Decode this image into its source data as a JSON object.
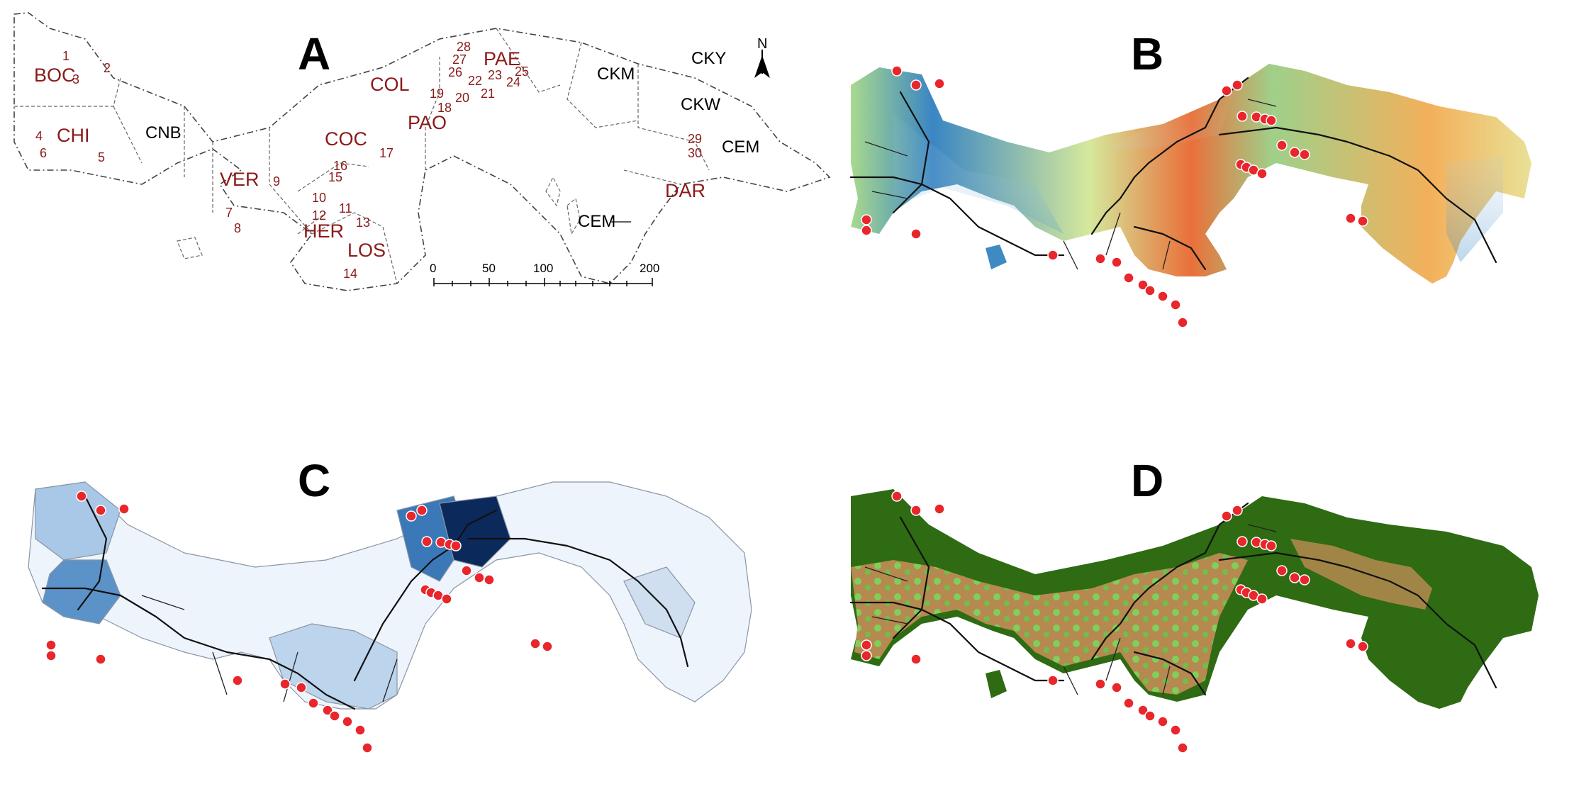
{
  "panels": {
    "a": {
      "letter": "A"
    },
    "b": {
      "letter": "B"
    },
    "c": {
      "letter": "C"
    },
    "d": {
      "letter": "D"
    }
  },
  "panel_a": {
    "north_label": "N",
    "provinces": {
      "boc": "BOC",
      "chi": "CHI",
      "ver": "VER",
      "her": "HER",
      "los": "LOS",
      "coc": "COC",
      "col": "COL",
      "pao": "PAO",
      "pae": "PAE",
      "dar": "DAR"
    },
    "comarcas": {
      "cnb": "CNB",
      "cky": "CKY",
      "ckm": "CKM",
      "ckw": "CKW",
      "cem_east": "CEM",
      "cem_south": "CEM"
    },
    "site_numbers": [
      "1",
      "2",
      "3",
      "4",
      "5",
      "6",
      "7",
      "8",
      "9",
      "10",
      "11",
      "12",
      "13",
      "14",
      "15",
      "16",
      "17",
      "18",
      "19",
      "20",
      "21",
      "22",
      "23",
      "24",
      "25",
      "26",
      "27",
      "28",
      "29",
      "30"
    ],
    "scale_ticks": [
      "0",
      "50",
      "100",
      "200"
    ]
  },
  "colors": {
    "site_marker": "#e8262b",
    "label_red": "#8b1a1a",
    "elevation_low": "#2f7fbf",
    "elevation_mid": "#c8e39a",
    "elevation_high": "#e4572e",
    "choropleth_dark": "#0b2a5b",
    "choropleth_light": "#eef4fb",
    "landcover_forest": "#2e6b12",
    "landcover_agri": "#b58950",
    "landcover_grass": "#7fcf5a"
  }
}
